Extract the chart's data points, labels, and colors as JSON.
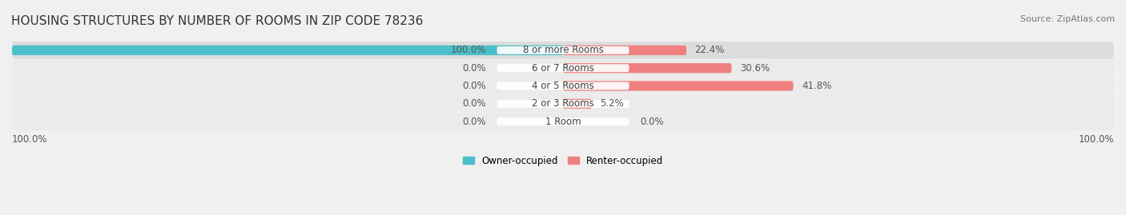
{
  "title": "HOUSING STRUCTURES BY NUMBER OF ROOMS IN ZIP CODE 78236",
  "source": "Source: ZipAtlas.com",
  "categories": [
    "1 Room",
    "2 or 3 Rooms",
    "4 or 5 Rooms",
    "6 or 7 Rooms",
    "8 or more Rooms"
  ],
  "owner_values": [
    0.0,
    0.0,
    0.0,
    0.0,
    100.0
  ],
  "renter_values": [
    0.0,
    5.2,
    41.8,
    30.6,
    22.4
  ],
  "owner_color": "#4BBFCB",
  "renter_color": "#F08080",
  "bg_color": "#F0F0F0",
  "bar_bg_color": "#E8E8E8",
  "bar_row_bg": "#EBEBEB",
  "xlim": [
    -100,
    100
  ],
  "title_fontsize": 11,
  "label_fontsize": 8.5,
  "cat_fontsize": 8.5,
  "legend_fontsize": 8.5,
  "source_fontsize": 8
}
